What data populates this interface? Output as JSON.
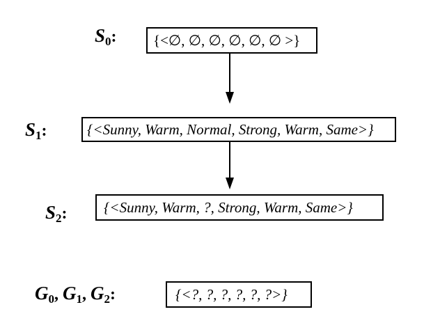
{
  "states": [
    {
      "symbol": "S",
      "subscript": "0",
      "value": "{<∅, ∅, ∅, ∅, ∅, ∅ >}"
    },
    {
      "symbol": "S",
      "subscript": "1",
      "value": "{<Sunny, Warm, Normal, Strong, Warm, Same>}"
    },
    {
      "symbol": "S",
      "subscript": "2",
      "value": "{<Sunny, Warm, ?, Strong, Warm, Same>}"
    }
  ],
  "general": {
    "symbols": [
      {
        "symbol": "G",
        "subscript": "0"
      },
      {
        "symbol": "G",
        "subscript": "1"
      },
      {
        "symbol": "G",
        "subscript": "2"
      }
    ],
    "value": "{<?, ?, ?, ?, ?, ?>}"
  }
}
